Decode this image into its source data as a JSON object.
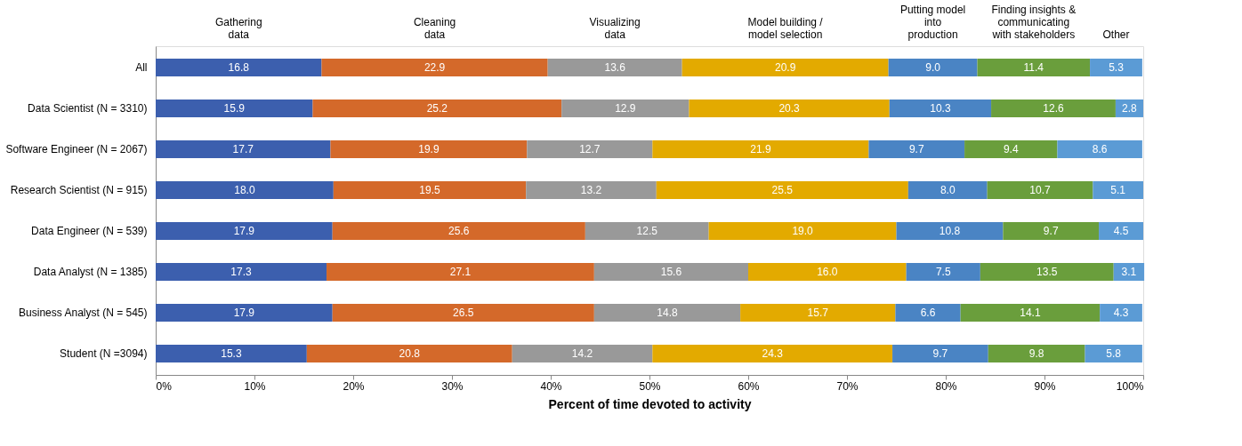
{
  "chart_data": {
    "type": "bar",
    "orientation": "horizontal",
    "stacked": true,
    "legend": "top",
    "xlabel": "Percent of time devoted to activity",
    "categories": [
      "All",
      "Data Scientist (N = 3310)",
      "Software Engineer (N = 2067)",
      "Research Scientist (N = 915)",
      "Data Engineer (N = 539)",
      "Data Analyst (N = 1385)",
      "Business Analyst (N = 545)",
      "Student (N =3094)"
    ],
    "xlim": [
      0,
      100
    ],
    "xticks": [
      {
        "value": 0,
        "label": "0%"
      },
      {
        "value": 10,
        "label": "10%"
      },
      {
        "value": 20,
        "label": "20%"
      },
      {
        "value": 30,
        "label": "30%"
      },
      {
        "value": 40,
        "label": "40%"
      },
      {
        "value": 50,
        "label": "50%"
      },
      {
        "value": 60,
        "label": "60%"
      },
      {
        "value": 70,
        "label": "70%"
      },
      {
        "value": 80,
        "label": "80%"
      },
      {
        "value": 90,
        "label": "90%"
      },
      {
        "value": 100,
        "label": "100%"
      }
    ],
    "series": [
      {
        "name": "Gathering\ndata",
        "color": "#3c5fae",
        "values": [
          16.8,
          15.9,
          17.7,
          18.0,
          17.9,
          17.3,
          17.9,
          15.3
        ],
        "value_labels": [
          "16.8",
          "15.9",
          "17.7",
          "18.0",
          "17.9",
          "17.3",
          "17.9",
          "15.3"
        ]
      },
      {
        "name": "Cleaning\ndata",
        "color": "#d4692a",
        "values": [
          22.9,
          25.2,
          19.9,
          19.5,
          25.6,
          27.1,
          26.5,
          20.8
        ],
        "value_labels": [
          "22.9",
          "25.2",
          "19.9",
          "19.5",
          "25.6",
          "27.1",
          "26.5",
          "20.8"
        ]
      },
      {
        "name": "Visualizing\ndata",
        "color": "#999999",
        "values": [
          13.6,
          12.9,
          12.7,
          13.2,
          12.5,
          15.6,
          14.8,
          14.2
        ],
        "value_labels": [
          "13.6",
          "12.9",
          "12.7",
          "13.2",
          "12.5",
          "15.6",
          "14.8",
          "14.2"
        ]
      },
      {
        "name": "Model building /\nmodel selection",
        "color": "#e3aa00",
        "values": [
          20.9,
          20.3,
          21.9,
          25.5,
          19.0,
          16.0,
          15.7,
          24.3
        ],
        "value_labels": [
          "20.9",
          "20.3",
          "21.9",
          "25.5",
          "19.0",
          "16.0",
          "15.7",
          "24.3"
        ]
      },
      {
        "name": "Putting model\ninto\nproduction",
        "color": "#4a84c4",
        "values": [
          9.0,
          10.3,
          9.7,
          8.0,
          10.8,
          7.5,
          6.6,
          9.7
        ],
        "value_labels": [
          "9.0",
          "10.3",
          "9.7",
          "8.0",
          "10.8",
          "7.5",
          "6.6",
          "9.7"
        ]
      },
      {
        "name": "Finding insights &\ncommunicating\nwith stakeholders",
        "color": "#6a9e3c",
        "values": [
          11.4,
          12.6,
          9.4,
          10.7,
          9.7,
          13.5,
          14.1,
          9.8
        ],
        "value_labels": [
          "11.4",
          "12.6",
          "9.4",
          "10.7",
          "9.7",
          "13.5",
          "14.1",
          "9.8"
        ]
      },
      {
        "name": "Other",
        "color": "#5b9bd5",
        "values": [
          5.3,
          2.8,
          8.6,
          5.1,
          4.5,
          3.1,
          4.3,
          5.8
        ],
        "value_labels": [
          "5.3",
          "2.8",
          "8.6",
          "5.1",
          "4.5",
          "3.1",
          "4.3",
          "5.8"
        ]
      }
    ]
  }
}
